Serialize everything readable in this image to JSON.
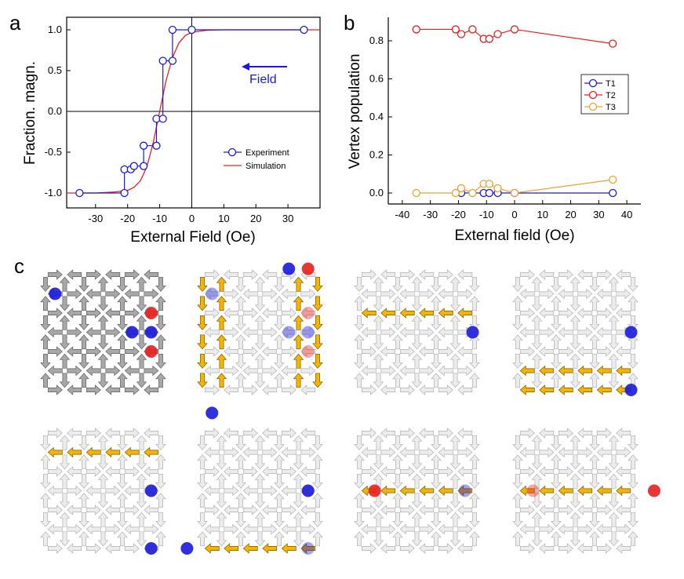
{
  "panel_labels": {
    "a": "a",
    "b": "b",
    "c": "c"
  },
  "colors": {
    "blue": "#1a1adb",
    "red": "#e8201c",
    "orange": "#f0a030",
    "arrow_gray": "#9a9a9a",
    "arrow_light": "#dcdcdc",
    "arrow_yellow": "#f5b400"
  },
  "chart_data": [
    {
      "type": "line",
      "panel": "a",
      "title": "",
      "xlabel": "External Field (Oe)",
      "ylabel": "Fraction. magn.",
      "xlim": [
        -39,
        40
      ],
      "ylim": [
        -1.1,
        1.1
      ],
      "xticks": [
        -30,
        -20,
        -10,
        0,
        10,
        20,
        30
      ],
      "xtick_labels": [
        "-30",
        "-20",
        "-10",
        "0",
        "10",
        "20",
        "30"
      ],
      "yticks": [
        -1.0,
        -0.5,
        0.0,
        0.5,
        1.0
      ],
      "ytick_labels": [
        "-1.0",
        "-0.5",
        "0.0",
        "0.5",
        "1.0"
      ],
      "annotation": "Field",
      "legend": {
        "placement": "bottom-right",
        "entries": [
          "Experiment",
          "Simulation"
        ]
      },
      "series": [
        {
          "name": "Experiment",
          "color": "#1a1adb",
          "style": "step-markers",
          "x": [
            -35,
            -21,
            -21,
            -19,
            -18,
            -15,
            -15,
            -11,
            -11,
            -9,
            -9,
            -6,
            -6,
            0,
            35
          ],
          "y": [
            -1,
            -1,
            -0.71,
            -0.71,
            -0.67,
            -0.67,
            -0.42,
            -0.42,
            -0.09,
            -0.09,
            0.62,
            0.62,
            1.0,
            1.0,
            1.0
          ]
        },
        {
          "name": "Simulation",
          "color": "#e8201c",
          "style": "line",
          "x": [
            -39,
            -30,
            -25,
            -20,
            -18,
            -16,
            -14,
            -12,
            -10,
            -8,
            -6,
            -4,
            -2,
            0,
            5,
            10,
            20,
            40
          ],
          "y": [
            -1.0,
            -1.0,
            -0.99,
            -0.97,
            -0.93,
            -0.85,
            -0.68,
            -0.38,
            0.0,
            0.38,
            0.66,
            0.84,
            0.93,
            0.97,
            0.995,
            1.0,
            1.0,
            1.0
          ]
        }
      ]
    },
    {
      "type": "line",
      "panel": "b",
      "title": "",
      "xlabel": "External field (Oe)",
      "ylabel": "Vertex population",
      "xlim": [
        -45,
        45
      ],
      "ylim": [
        -0.03,
        0.9
      ],
      "xticks": [
        -40,
        -30,
        -20,
        -10,
        0,
        10,
        20,
        30,
        40
      ],
      "xtick_labels": [
        "-40",
        "-30",
        "-20",
        "-10",
        "0",
        "10",
        "20",
        "30",
        "40"
      ],
      "yticks": [
        0.0,
        0.2,
        0.4,
        0.6,
        0.8
      ],
      "ytick_labels": [
        "0.0",
        "0.2",
        "0.4",
        "0.6",
        "0.8"
      ],
      "legend": {
        "placement": "right",
        "entries": [
          "T1",
          "T2",
          "T3"
        ]
      },
      "series": [
        {
          "name": "T1",
          "color": "#1a1adb",
          "x": [
            -19,
            -11,
            -9,
            -6,
            0,
            35
          ],
          "y": [
            0,
            0,
            0,
            0,
            0,
            0
          ]
        },
        {
          "name": "T2",
          "color": "#e8201c",
          "x": [
            -35,
            -21,
            -19,
            -15,
            -11,
            -9,
            -6,
            0,
            35
          ],
          "y": [
            0.86,
            0.86,
            0.835,
            0.86,
            0.81,
            0.81,
            0.835,
            0.86,
            0.785
          ]
        },
        {
          "name": "T3",
          "color": "#f0a030",
          "x": [
            -35,
            -21,
            -19,
            -15,
            -11,
            -9,
            -6,
            0,
            35
          ],
          "y": [
            0,
            0,
            0.025,
            0,
            0.048,
            0.048,
            0.025,
            0,
            0.07
          ]
        }
      ]
    }
  ]
}
